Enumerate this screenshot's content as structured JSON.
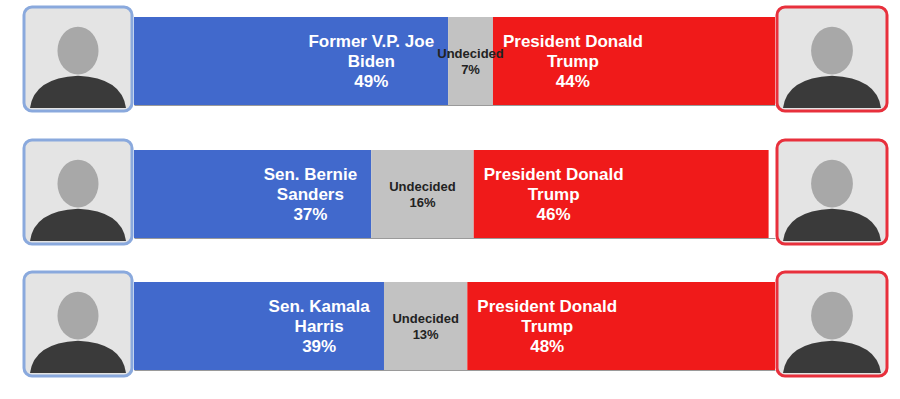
{
  "chart_data": [
    {
      "type": "bar",
      "orientation": "horizontal",
      "stacked": true,
      "data_labels": true,
      "tick_labels": false,
      "categories": [
        null
      ],
      "xlim": [
        0,
        100
      ],
      "series": [
        {
          "name": "Former V.P. Joe Biden",
          "color": "#4169cc",
          "values": [
            49
          ],
          "value_labels": [
            "49%"
          ]
        },
        {
          "name": "Undecided",
          "color": "#c2c2c2",
          "values": [
            7
          ],
          "value_labels": [
            "7%"
          ]
        },
        {
          "name": "President Donald Trump",
          "color": "#f01a1a",
          "values": [
            44
          ],
          "value_labels": [
            "44%"
          ]
        }
      ]
    },
    {
      "type": "bar",
      "orientation": "horizontal",
      "stacked": true,
      "data_labels": true,
      "tick_labels": false,
      "categories": [
        null
      ],
      "xlim": [
        0,
        100
      ],
      "series": [
        {
          "name": "Sen. Bernie Sanders",
          "color": "#4169cc",
          "values": [
            37
          ],
          "value_labels": [
            "37%"
          ]
        },
        {
          "name": "Undecided",
          "color": "#c2c2c2",
          "values": [
            16
          ],
          "value_labels": [
            "16%"
          ]
        },
        {
          "name": "President Donald Trump",
          "color": "#f01a1a",
          "values": [
            46
          ],
          "value_labels": [
            "46%"
          ]
        }
      ]
    },
    {
      "type": "bar",
      "orientation": "horizontal",
      "stacked": true,
      "data_labels": true,
      "tick_labels": false,
      "categories": [
        null
      ],
      "xlim": [
        0,
        100
      ],
      "series": [
        {
          "name": "Sen. Kamala Harris",
          "color": "#4169cc",
          "values": [
            39
          ],
          "value_labels": [
            "39%"
          ]
        },
        {
          "name": "Undecided",
          "color": "#c2c2c2",
          "values": [
            13
          ],
          "value_labels": [
            "13%"
          ]
        },
        {
          "name": "President Donald Trump",
          "color": "#f01a1a",
          "values": [
            48
          ],
          "value_labels": [
            "48%"
          ]
        }
      ]
    }
  ]
}
